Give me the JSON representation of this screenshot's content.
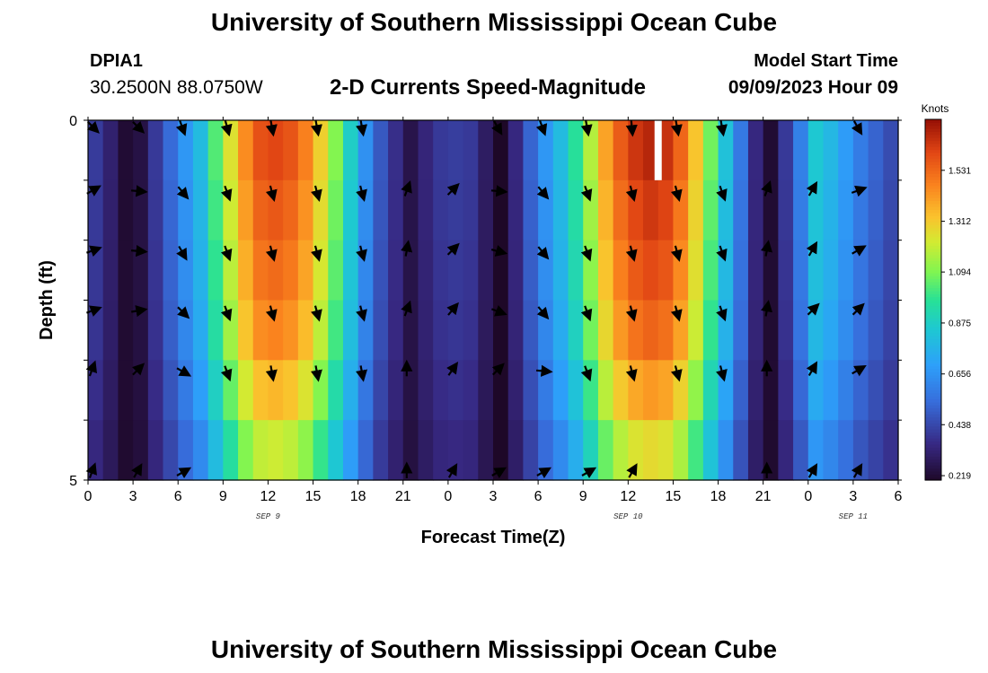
{
  "header": {
    "title": "University of Southern Mississippi Ocean Cube",
    "station_id": "DPIA1",
    "station_location": "30.2500N  88.0750W",
    "product_title": "2-D Currents Speed-Magnitude",
    "start_label": "Model Start Time",
    "start_value": "09/09/2023 Hour 09"
  },
  "footer": {
    "title": "University of Southern Mississippi Ocean Cube"
  },
  "chart_data": {
    "type": "heatmap",
    "title": "2-D Currents Speed-Magnitude",
    "xlabel": "Forecast Time(Z)",
    "ylabel": "Depth (ft)",
    "x_ticks": [
      "0",
      "3",
      "6",
      "9",
      "12",
      "15",
      "18",
      "21",
      "0",
      "3",
      "6",
      "9",
      "12",
      "15",
      "18",
      "21",
      "0",
      "3",
      "6"
    ],
    "x_hours": [
      0,
      3,
      6,
      9,
      12,
      15,
      18,
      21,
      24,
      27,
      30,
      33,
      36,
      39,
      42,
      45,
      48,
      51,
      54
    ],
    "date_labels": [
      {
        "hour": 12,
        "label": "SEP 9"
      },
      {
        "hour": 36,
        "label": "SEP 10"
      },
      {
        "hour": 51,
        "label": "SEP 11"
      }
    ],
    "xlim": [
      0,
      54
    ],
    "y_ticks": [
      "0",
      "5"
    ],
    "ylim": [
      0,
      5
    ],
    "depth_layers": [
      0,
      1,
      2,
      3,
      4,
      5
    ],
    "colorbar": {
      "label": "Knots",
      "ticks": [
        0.219,
        0.438,
        0.656,
        0.875,
        1.094,
        1.312,
        1.531
      ],
      "tick_labels": [
        "0.219",
        "0.438",
        "0.656",
        "0.875",
        "1.094",
        "1.312",
        "1.531"
      ],
      "range": [
        0.2,
        1.75
      ]
    },
    "speed_profile_surface": [
      [
        0,
        0.45
      ],
      [
        1.5,
        0.32
      ],
      [
        2.5,
        0.22
      ],
      [
        3.5,
        0.25
      ],
      [
        4.5,
        0.4
      ],
      [
        6,
        0.6
      ],
      [
        7.5,
        0.8
      ],
      [
        9,
        1.15
      ],
      [
        10,
        1.35
      ],
      [
        11,
        1.55
      ],
      [
        12,
        1.62
      ],
      [
        13,
        1.6
      ],
      [
        14,
        1.55
      ],
      [
        15,
        1.4
      ],
      [
        16,
        1.2
      ],
      [
        17,
        1.0
      ],
      [
        18,
        0.75
      ],
      [
        19,
        0.55
      ],
      [
        20,
        0.42
      ],
      [
        21,
        0.32
      ],
      [
        21.5,
        0.26
      ],
      [
        22,
        0.3
      ],
      [
        23,
        0.38
      ],
      [
        24,
        0.42
      ],
      [
        25.5,
        0.4
      ],
      [
        26.5,
        0.3
      ],
      [
        27,
        0.12
      ],
      [
        27.5,
        0.12
      ],
      [
        28.5,
        0.35
      ],
      [
        30,
        0.6
      ],
      [
        31.5,
        0.8
      ],
      [
        33,
        1.05
      ],
      [
        34,
        1.3
      ],
      [
        35,
        1.5
      ],
      [
        36,
        1.62
      ],
      [
        37,
        1.68
      ],
      [
        38,
        1.7
      ],
      [
        39,
        1.62
      ],
      [
        40,
        1.45
      ],
      [
        41,
        1.2
      ],
      [
        42,
        0.95
      ],
      [
        43,
        0.7
      ],
      [
        44,
        0.45
      ],
      [
        45,
        0.25
      ],
      [
        45.5,
        0.22
      ],
      [
        46,
        0.25
      ],
      [
        46.5,
        0.4
      ],
      [
        47.5,
        0.6
      ],
      [
        48.5,
        0.85
      ],
      [
        50,
        0.75
      ],
      [
        51,
        0.62
      ],
      [
        52,
        0.55
      ],
      [
        53,
        0.48
      ],
      [
        54,
        0.42
      ]
    ],
    "layer_speed_factor": [
      1.0,
      0.97,
      0.94,
      0.9,
      0.82,
      0.72
    ],
    "max_speed_gap_hour": 38,
    "vector_times": [
      0,
      3,
      6,
      9,
      12,
      15,
      18,
      21,
      24,
      27,
      30,
      33,
      36,
      39,
      42,
      45,
      48,
      51
    ],
    "vector_directions_deg": [
      [
        135,
        135,
        160,
        165,
        170,
        170,
        170,
        null,
        null,
        150,
        160,
        170,
        175,
        170,
        170,
        null,
        null,
        150
      ],
      [
        60,
        95,
        140,
        160,
        165,
        165,
        165,
        20,
        45,
        95,
        140,
        160,
        165,
        165,
        160,
        20,
        30,
        70
      ],
      [
        70,
        95,
        150,
        160,
        165,
        165,
        165,
        10,
        45,
        105,
        140,
        160,
        165,
        165,
        160,
        10,
        30,
        60
      ],
      [
        70,
        80,
        135,
        160,
        165,
        165,
        165,
        20,
        40,
        110,
        140,
        160,
        165,
        165,
        160,
        10,
        45,
        45
      ],
      [
        20,
        45,
        120,
        160,
        170,
        170,
        170,
        0,
        35,
        45,
        95,
        160,
        165,
        165,
        165,
        0,
        30,
        60
      ],
      [
        20,
        30,
        60,
        null,
        null,
        null,
        null,
        0,
        30,
        60,
        60,
        60,
        30,
        null,
        null,
        0,
        30,
        30
      ]
    ]
  }
}
